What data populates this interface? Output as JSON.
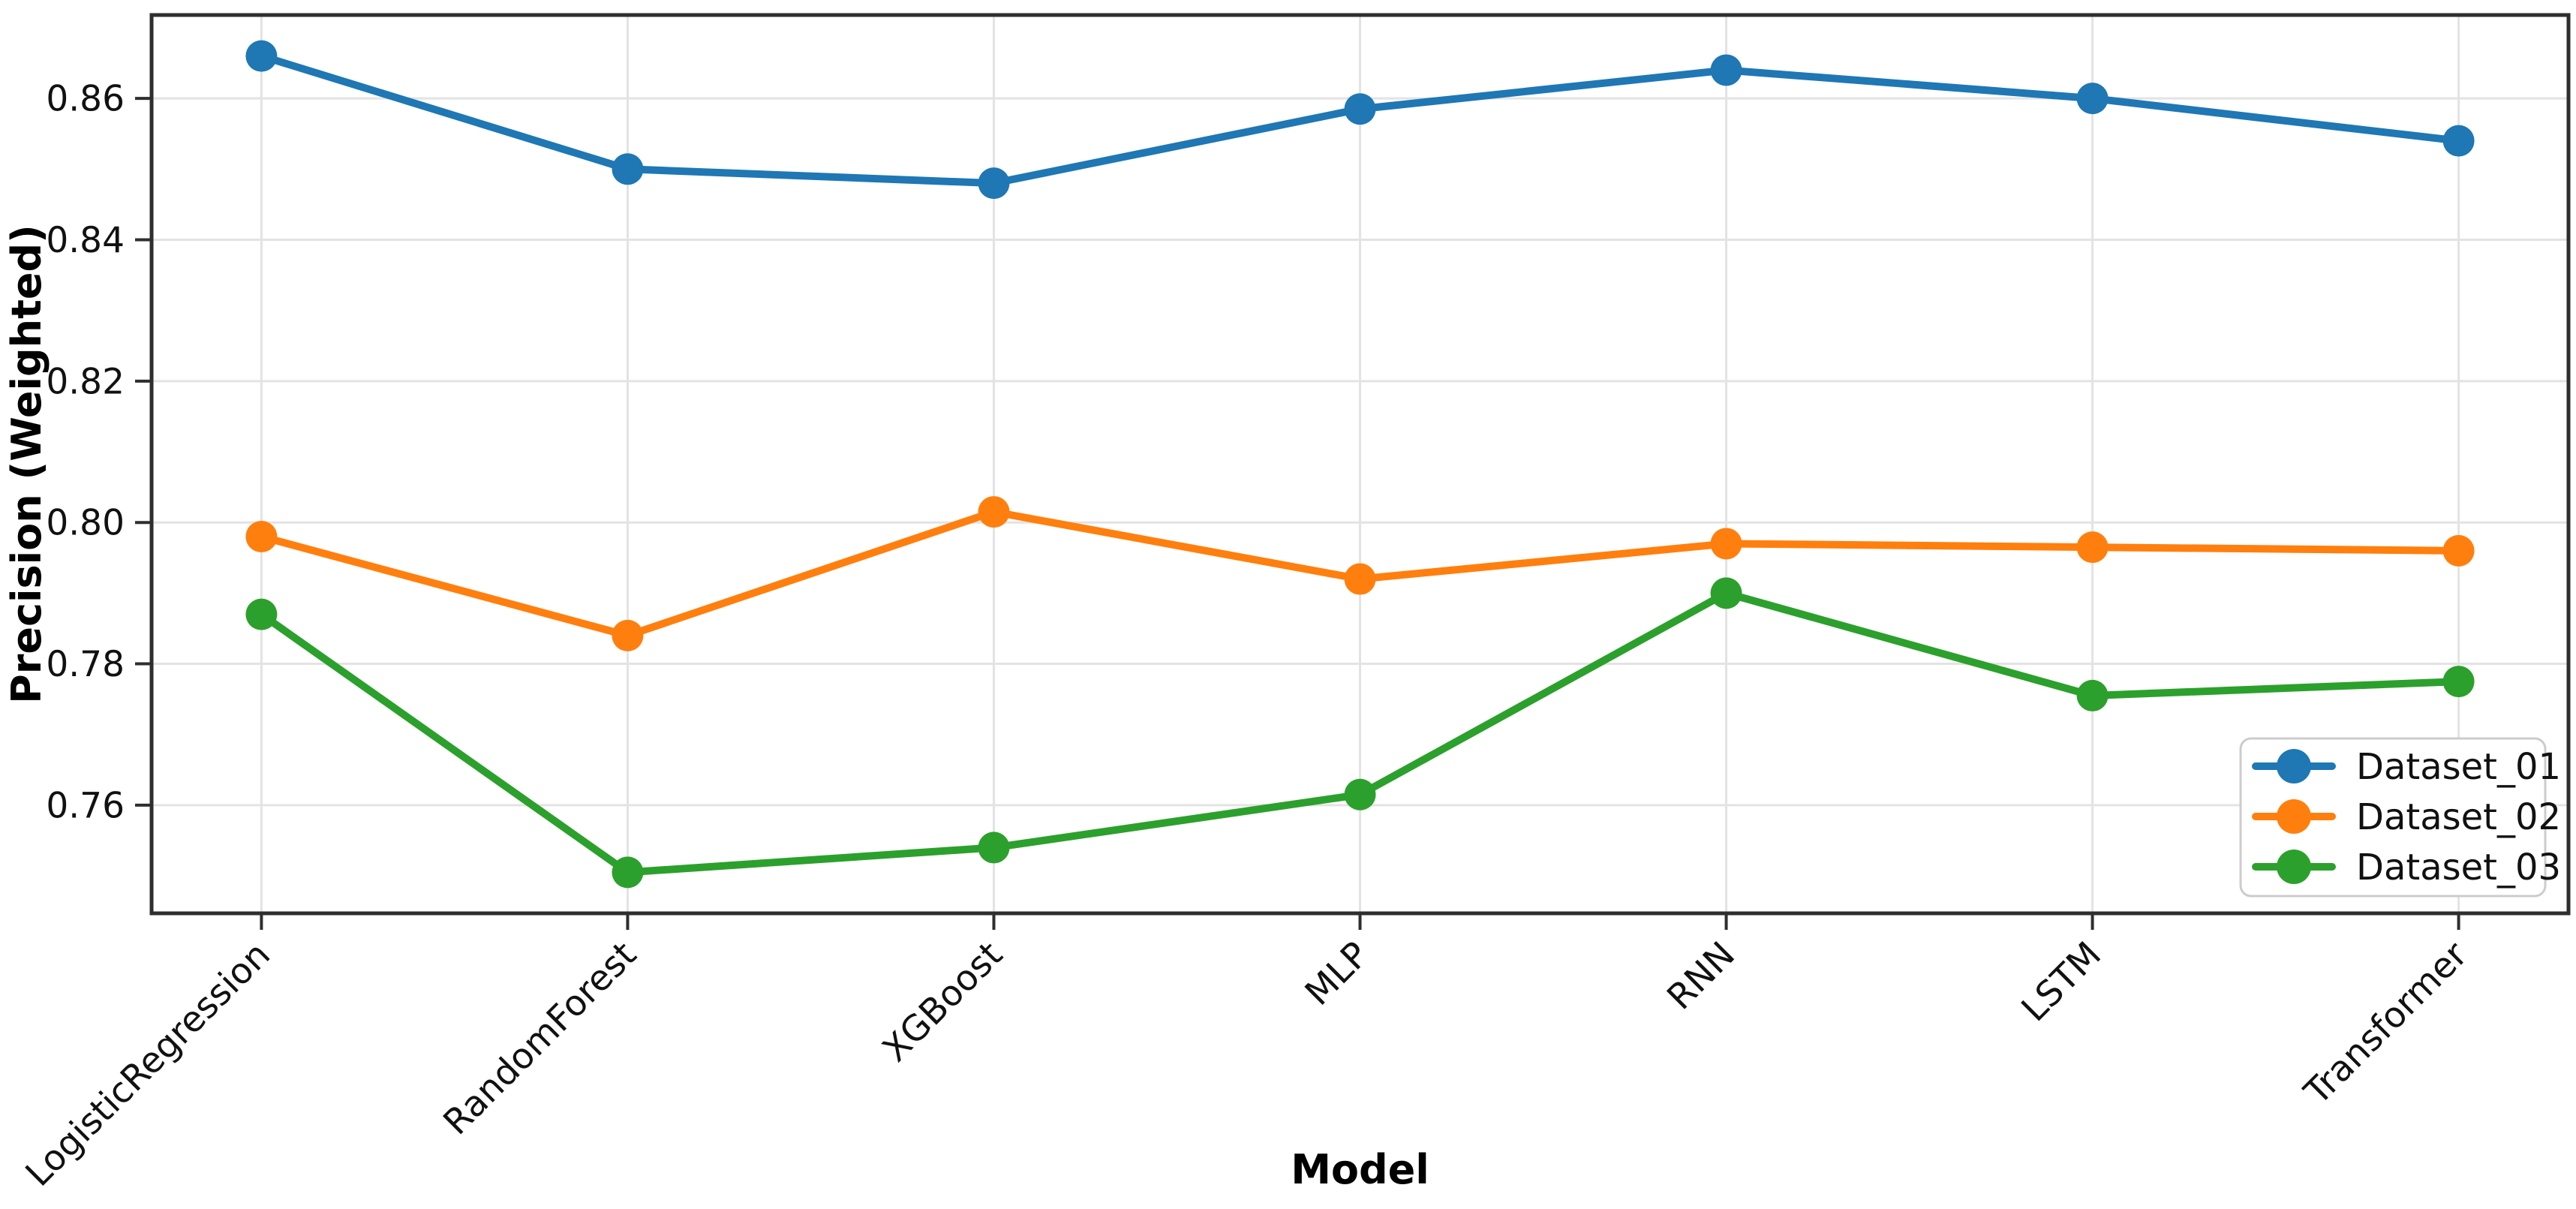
{
  "chart_data": {
    "type": "line",
    "title": "",
    "xlabel": "Model",
    "ylabel": "Precision (Weighted)",
    "categories": [
      "LogisticRegression",
      "RandomForest",
      "XGBoost",
      "MLP",
      "RNN",
      "LSTM",
      "Transformer"
    ],
    "series": [
      {
        "name": "Dataset_01",
        "color": "#1f77b4",
        "values": [
          0.866,
          0.85,
          0.848,
          0.8585,
          0.864,
          0.86,
          0.854
        ]
      },
      {
        "name": "Dataset_02",
        "color": "#ff7f0e",
        "values": [
          0.798,
          0.784,
          0.8015,
          0.792,
          0.797,
          0.7965,
          0.796
        ]
      },
      {
        "name": "Dataset_03",
        "color": "#2ca02c",
        "values": [
          0.787,
          0.7505,
          0.754,
          0.7615,
          0.79,
          0.7755,
          0.7775
        ]
      }
    ],
    "ylim": [
      0.7447,
      0.8718
    ],
    "yticks": [
      0.76,
      0.78,
      0.8,
      0.82,
      0.84,
      0.86
    ],
    "ytick_labels": [
      "0.76",
      "0.78",
      "0.80",
      "0.82",
      "0.84",
      "0.86"
    ],
    "grid": true,
    "legend_position": "lower right",
    "marker": "circle"
  }
}
